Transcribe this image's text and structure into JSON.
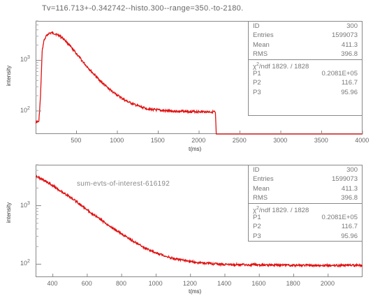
{
  "chart_data": [
    {
      "type": "line",
      "title": "Tv=116.713+-0.342742--histo.300--range=350.-to-2180.",
      "xlabel": "t(ms)",
      "ylabel": "intensity",
      "xlim": [
        0,
        4000
      ],
      "ylim": [
        35,
        6000
      ],
      "yscale": "log",
      "xticks": [
        "500",
        "1000",
        "1500",
        "2000",
        "2500",
        "3000",
        "3500",
        "4000"
      ],
      "yticks": [
        "10^2",
        "10^3"
      ],
      "series": [
        {
          "color": "#e01010",
          "x": [
            0,
            40,
            60,
            80,
            100,
            130,
            160,
            200,
            250,
            300,
            350,
            400,
            500,
            600,
            700,
            800,
            900,
            1000,
            1100,
            1200,
            1300,
            1400,
            1600,
            1800,
            2000,
            2190,
            2200,
            2210,
            4000
          ],
          "y": [
            60,
            62,
            200,
            1500,
            2400,
            3000,
            3400,
            3500,
            3300,
            3000,
            2600,
            2100,
            1350,
            850,
            560,
            380,
            270,
            205,
            160,
            135,
            118,
            108,
            100,
            98,
            97,
            96,
            90,
            35,
            35
          ]
        }
      ],
      "legend": "none",
      "grid": false,
      "stats": {
        "ID": "300",
        "Entries": "1599073",
        "Mean": "411.3",
        "RMS": "396.8",
        "chi2_label": "/ndf",
        "chi2": "1829.",
        "ndf": "/ 1828",
        "P1": "0.2081E+05",
        "P2": "116.7",
        "P3": "95.96"
      }
    },
    {
      "type": "line",
      "title": "",
      "annotation": "sum-evts-of-interest-616192",
      "xlabel": "t(ms)",
      "ylabel": "intensity",
      "xlim": [
        300,
        2200
      ],
      "ylim": [
        60,
        5000
      ],
      "yscale": "log",
      "xticks": [
        "400",
        "600",
        "800",
        "1000",
        "1200",
        "1400",
        "1600",
        "1800",
        "2000"
      ],
      "yticks": [
        "10^2",
        "10^3"
      ],
      "series": [
        {
          "color": "#e01010",
          "x": [
            300,
            350,
            400,
            450,
            500,
            550,
            600,
            650,
            700,
            750,
            800,
            850,
            900,
            950,
            1000,
            1100,
            1200,
            1300,
            1400,
            1600,
            1800,
            2000,
            2200
          ],
          "y": [
            3200,
            2700,
            2200,
            1750,
            1400,
            1100,
            850,
            660,
            520,
            410,
            330,
            265,
            215,
            180,
            155,
            125,
            110,
            103,
            99,
            97,
            96,
            95,
            95
          ]
        }
      ],
      "legend": "none",
      "grid": false,
      "stats": {
        "ID": "300",
        "Entries": "1599073",
        "Mean": "411.3",
        "RMS": "396.8",
        "chi2_label": "/ndf",
        "chi2": "1829.",
        "ndf": "/ 1828",
        "P1": "0.2081E+05",
        "P2": "116.7",
        "P3": "95.96"
      }
    }
  ]
}
